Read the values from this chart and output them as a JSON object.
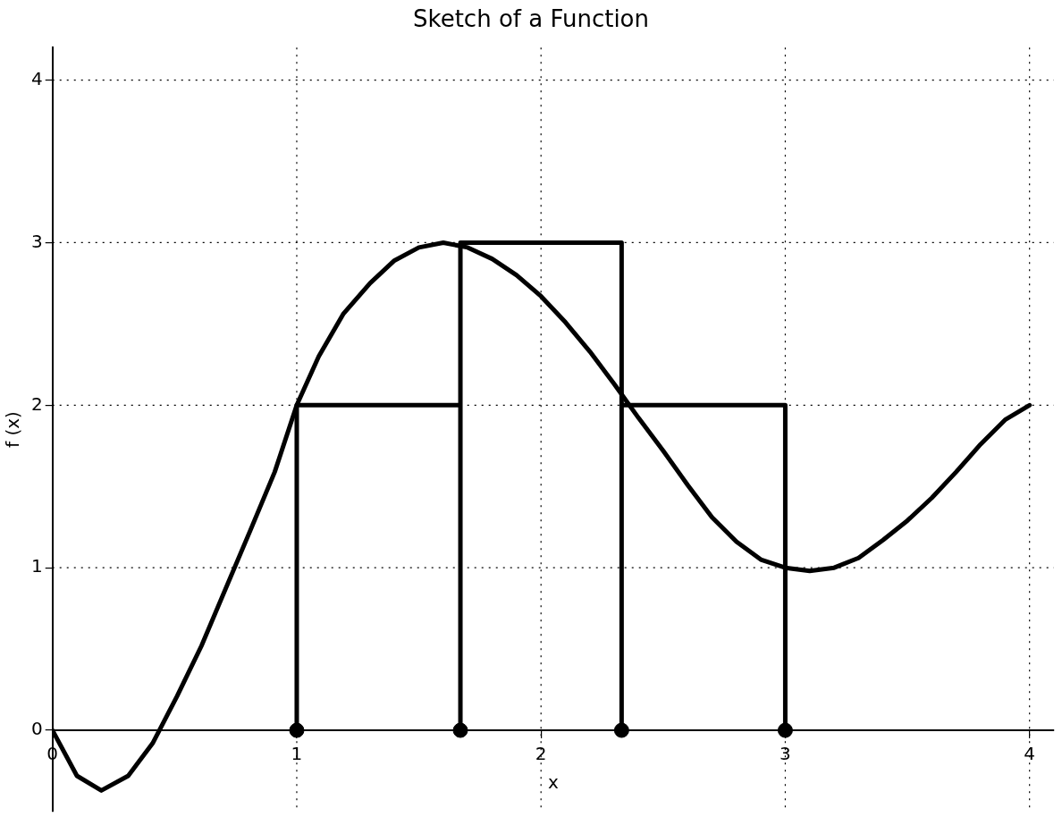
{
  "chart_data": {
    "type": "line",
    "title": "Sketch of a Function",
    "xlabel": "x",
    "ylabel": "f (x)",
    "xlim": [
      0,
      4.1
    ],
    "ylim": [
      -0.5,
      4.2
    ],
    "xticks": [
      0,
      1,
      2,
      3,
      4
    ],
    "yticks": [
      0,
      1,
      2,
      3,
      4
    ],
    "grid": true,
    "line_style": "solid",
    "series": [
      {
        "type": "line",
        "color": "#000000",
        "marker": "none",
        "x": [
          0,
          0.1,
          0.2,
          0.31,
          0.41,
          0.51,
          0.61,
          0.81,
          0.91,
          1.0,
          1.09,
          1.19,
          1.3,
          1.4,
          1.5,
          1.6,
          1.7,
          1.8,
          1.9,
          2.0,
          2.1,
          2.2,
          2.3,
          2.4,
          2.5,
          2.6,
          2.7,
          2.8,
          2.9,
          3.0,
          3.1,
          3.2,
          3.3,
          3.4,
          3.5,
          3.6,
          3.7,
          3.8,
          3.9,
          4.0
        ],
        "values": [
          0,
          -0.28,
          -0.37,
          -0.28,
          -0.08,
          0.21,
          0.52,
          1.23,
          1.59,
          2.0,
          2.3,
          2.56,
          2.75,
          2.89,
          2.97,
          3.0,
          2.97,
          2.9,
          2.8,
          2.67,
          2.51,
          2.33,
          2.13,
          1.92,
          1.72,
          1.51,
          1.31,
          1.16,
          1.05,
          1.0,
          0.98,
          1.0,
          1.06,
          1.17,
          1.29,
          1.43,
          1.59,
          1.76,
          1.91,
          2.0
        ]
      },
      {
        "type": "line",
        "color": "#000000",
        "marker": "none",
        "x": [
          1,
          1,
          1.67,
          1.67,
          1.67,
          2.33,
          2.33,
          2.33,
          3,
          3
        ],
        "values": [
          0,
          2,
          2,
          0,
          3,
          3,
          0,
          2,
          2,
          0
        ]
      },
      {
        "type": "scatter",
        "color": "#000000",
        "marker": "circle",
        "x": [
          1,
          1.67,
          2.33,
          3
        ],
        "values": [
          0,
          0,
          0,
          0
        ]
      }
    ]
  }
}
